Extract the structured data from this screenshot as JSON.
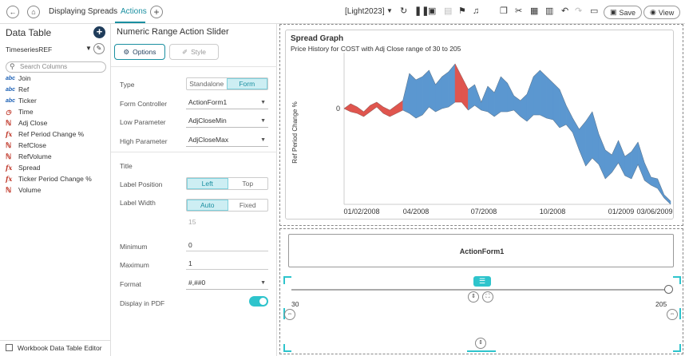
{
  "toolbar": {
    "tabs": [
      {
        "label": "Displaying Spreads",
        "active": false
      },
      {
        "label": "Actions",
        "active": true
      }
    ],
    "theme_label": "[Light2023]",
    "save_label": "Save",
    "view_label": "View"
  },
  "data_table": {
    "title": "Data Table",
    "datasource": "TimeseriesREF",
    "search_placeholder": "Search Columns",
    "columns": [
      {
        "type": "abc",
        "name": "Join"
      },
      {
        "type": "abc",
        "name": "Ref"
      },
      {
        "type": "abc",
        "name": "Ticker"
      },
      {
        "type": "time",
        "name": "Time"
      },
      {
        "type": "num",
        "name": "Adj Close"
      },
      {
        "type": "fx",
        "name": "Ref Period Change %"
      },
      {
        "type": "num",
        "name": "RefClose"
      },
      {
        "type": "num",
        "name": "RefVolume"
      },
      {
        "type": "fx",
        "name": "Spread"
      },
      {
        "type": "fx",
        "name": "Ticker Period Change %"
      },
      {
        "type": "num",
        "name": "Volume"
      }
    ],
    "footer_label": "Workbook Data Table Editor"
  },
  "properties": {
    "title": "Numeric Range Action Slider",
    "options_label": "Options",
    "style_label": "Style",
    "type_label": "Type",
    "type_options": [
      "Standalone",
      "Form"
    ],
    "type_selected": "Form",
    "form_controller_label": "Form Controller",
    "form_controller_value": "ActionForm1",
    "low_param_label": "Low Parameter",
    "low_param_value": "AdjCloseMin",
    "high_param_label": "High Parameter",
    "high_param_value": "AdjCloseMax",
    "title_label": "Title",
    "title_value": "",
    "label_position_label": "Label Position",
    "label_position_options": [
      "Left",
      "Top"
    ],
    "label_position_selected": "Left",
    "label_width_label": "Label Width",
    "label_width_options": [
      "Auto",
      "Fixed"
    ],
    "label_width_selected": "Auto",
    "label_width_value": "15",
    "minimum_label": "Minimum",
    "minimum_value": "0",
    "maximum_label": "Maximum",
    "maximum_value": "1",
    "format_label": "Format",
    "format_value": "#,##0",
    "display_pdf_label": "Display in PDF",
    "display_pdf_on": true
  },
  "canvas": {
    "form_label": "ActionForm1",
    "slider": {
      "min_label": "30",
      "max_label": "205",
      "low": 30,
      "high": 205,
      "min": 30,
      "max": 205
    }
  },
  "chart_data": {
    "type": "area",
    "title": "Spread Graph",
    "subtitle": "Price History for COST with Adj Close range of 30 to 205",
    "ylabel": "Ref Period Change %",
    "xlabel": "",
    "y_ticks": [
      "0"
    ],
    "x_ticks": [
      "01/02/2008",
      "04/2008",
      "07/2008",
      "10/2008",
      "01/2009",
      "03/06/2009"
    ],
    "ylim": [
      -60,
      30
    ],
    "colors": {
      "positive": "#5b97d0",
      "negative": "#e0554e"
    },
    "series": [
      {
        "name": "upper",
        "values": [
          0,
          3,
          1,
          -2,
          2,
          4,
          1,
          -1,
          2,
          5,
          22,
          18,
          20,
          24,
          15,
          20,
          23,
          28,
          20,
          12,
          15,
          4,
          14,
          10,
          20,
          16,
          8,
          5,
          9,
          20,
          24,
          20,
          16,
          12,
          2,
          -6,
          -13,
          -8,
          -2,
          -16,
          -26,
          -29,
          -20,
          -30,
          -27,
          -21,
          -34,
          -43,
          -44,
          -54,
          -58
        ]
      },
      {
        "name": "lower",
        "values": [
          0,
          -2,
          -3,
          -5,
          -2,
          1,
          -3,
          -5,
          -3,
          -1,
          -3,
          -6,
          -4,
          1,
          -2,
          0,
          1,
          4,
          4,
          -1,
          2,
          -1,
          -2,
          -5,
          -2,
          -2,
          -1,
          -5,
          -8,
          -4,
          -4,
          -6,
          -7,
          -12,
          -10,
          -15,
          -26,
          -36,
          -31,
          -35,
          -44,
          -40,
          -34,
          -42,
          -44,
          -35,
          -45,
          -48,
          -50,
          -56,
          -60
        ]
      }
    ],
    "x_count": 51
  }
}
